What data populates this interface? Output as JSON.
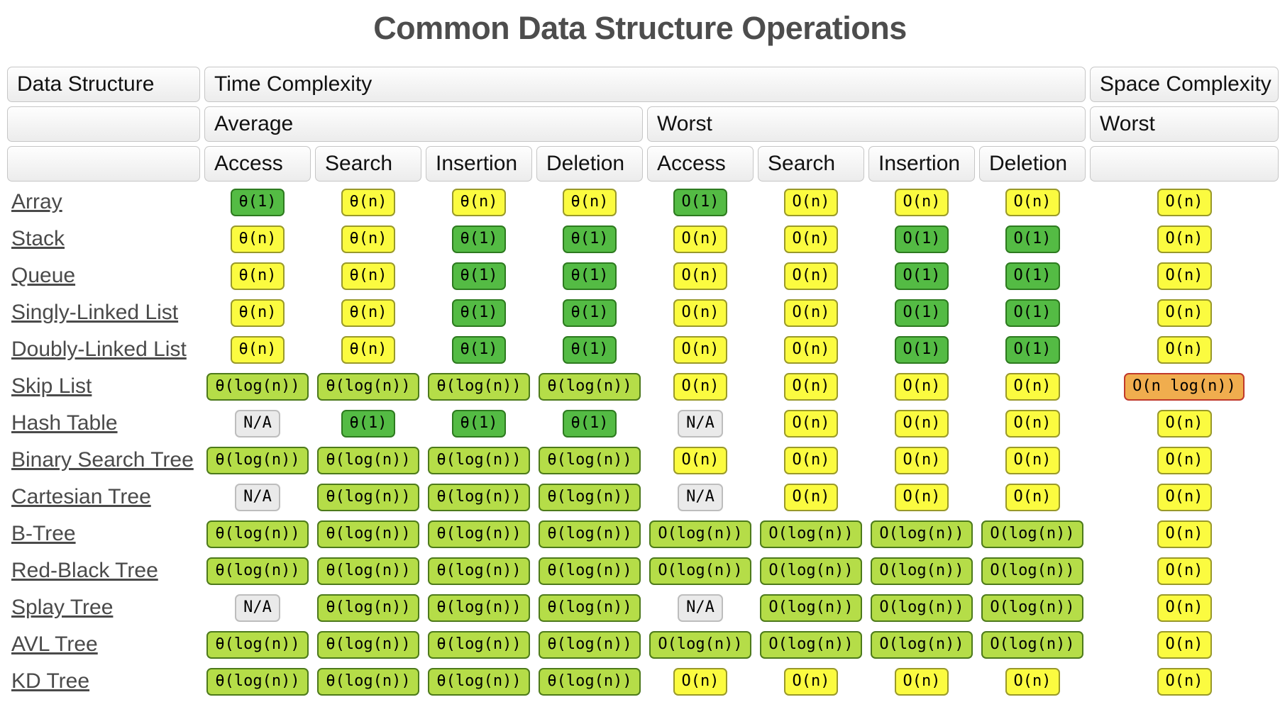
{
  "title": "Common Data Structure Operations",
  "colors": {
    "excellent_green": "#54bb44",
    "good_lightgreen": "#b5dd48",
    "fair_yellow": "#fbfb40",
    "bad_orange": "#f0ad4e",
    "orange_border_red": "#c0392b",
    "na_gray": "#eaeaea"
  },
  "table": {
    "header": {
      "data_structure": "Data Structure",
      "time_complexity": "Time Complexity",
      "space_complexity": "Space Complexity",
      "average": "Average",
      "time_worst": "Worst",
      "space_worst": "Worst",
      "ops": [
        "Access",
        "Search",
        "Insertion",
        "Deletion",
        "Access",
        "Search",
        "Insertion",
        "Deletion"
      ]
    },
    "rows": [
      {
        "name": "Array",
        "cells": [
          {
            "text": "θ(1)",
            "color": "green"
          },
          {
            "text": "θ(n)",
            "color": "yellow"
          },
          {
            "text": "θ(n)",
            "color": "yellow"
          },
          {
            "text": "θ(n)",
            "color": "yellow"
          },
          {
            "text": "O(1)",
            "color": "green"
          },
          {
            "text": "O(n)",
            "color": "yellow"
          },
          {
            "text": "O(n)",
            "color": "yellow"
          },
          {
            "text": "O(n)",
            "color": "yellow"
          },
          {
            "text": "O(n)",
            "color": "yellow"
          }
        ]
      },
      {
        "name": "Stack",
        "cells": [
          {
            "text": "θ(n)",
            "color": "yellow"
          },
          {
            "text": "θ(n)",
            "color": "yellow"
          },
          {
            "text": "θ(1)",
            "color": "green"
          },
          {
            "text": "θ(1)",
            "color": "green"
          },
          {
            "text": "O(n)",
            "color": "yellow"
          },
          {
            "text": "O(n)",
            "color": "yellow"
          },
          {
            "text": "O(1)",
            "color": "green"
          },
          {
            "text": "O(1)",
            "color": "green"
          },
          {
            "text": "O(n)",
            "color": "yellow"
          }
        ]
      },
      {
        "name": "Queue",
        "cells": [
          {
            "text": "θ(n)",
            "color": "yellow"
          },
          {
            "text": "θ(n)",
            "color": "yellow"
          },
          {
            "text": "θ(1)",
            "color": "green"
          },
          {
            "text": "θ(1)",
            "color": "green"
          },
          {
            "text": "O(n)",
            "color": "yellow"
          },
          {
            "text": "O(n)",
            "color": "yellow"
          },
          {
            "text": "O(1)",
            "color": "green"
          },
          {
            "text": "O(1)",
            "color": "green"
          },
          {
            "text": "O(n)",
            "color": "yellow"
          }
        ]
      },
      {
        "name": "Singly-Linked List",
        "cells": [
          {
            "text": "θ(n)",
            "color": "yellow"
          },
          {
            "text": "θ(n)",
            "color": "yellow"
          },
          {
            "text": "θ(1)",
            "color": "green"
          },
          {
            "text": "θ(1)",
            "color": "green"
          },
          {
            "text": "O(n)",
            "color": "yellow"
          },
          {
            "text": "O(n)",
            "color": "yellow"
          },
          {
            "text": "O(1)",
            "color": "green"
          },
          {
            "text": "O(1)",
            "color": "green"
          },
          {
            "text": "O(n)",
            "color": "yellow"
          }
        ]
      },
      {
        "name": "Doubly-Linked List",
        "cells": [
          {
            "text": "θ(n)",
            "color": "yellow"
          },
          {
            "text": "θ(n)",
            "color": "yellow"
          },
          {
            "text": "θ(1)",
            "color": "green"
          },
          {
            "text": "θ(1)",
            "color": "green"
          },
          {
            "text": "O(n)",
            "color": "yellow"
          },
          {
            "text": "O(n)",
            "color": "yellow"
          },
          {
            "text": "O(1)",
            "color": "green"
          },
          {
            "text": "O(1)",
            "color": "green"
          },
          {
            "text": "O(n)",
            "color": "yellow"
          }
        ]
      },
      {
        "name": "Skip List",
        "cells": [
          {
            "text": "θ(log(n))",
            "color": "lightgreen"
          },
          {
            "text": "θ(log(n))",
            "color": "lightgreen"
          },
          {
            "text": "θ(log(n))",
            "color": "lightgreen"
          },
          {
            "text": "θ(log(n))",
            "color": "lightgreen"
          },
          {
            "text": "O(n)",
            "color": "yellow"
          },
          {
            "text": "O(n)",
            "color": "yellow"
          },
          {
            "text": "O(n)",
            "color": "yellow"
          },
          {
            "text": "O(n)",
            "color": "yellow"
          },
          {
            "text": "O(n log(n))",
            "color": "orange"
          }
        ]
      },
      {
        "name": "Hash Table",
        "cells": [
          {
            "text": "N/A",
            "color": "na"
          },
          {
            "text": "θ(1)",
            "color": "green"
          },
          {
            "text": "θ(1)",
            "color": "green"
          },
          {
            "text": "θ(1)",
            "color": "green"
          },
          {
            "text": "N/A",
            "color": "na"
          },
          {
            "text": "O(n)",
            "color": "yellow"
          },
          {
            "text": "O(n)",
            "color": "yellow"
          },
          {
            "text": "O(n)",
            "color": "yellow"
          },
          {
            "text": "O(n)",
            "color": "yellow"
          }
        ]
      },
      {
        "name": "Binary Search Tree",
        "cells": [
          {
            "text": "θ(log(n))",
            "color": "lightgreen"
          },
          {
            "text": "θ(log(n))",
            "color": "lightgreen"
          },
          {
            "text": "θ(log(n))",
            "color": "lightgreen"
          },
          {
            "text": "θ(log(n))",
            "color": "lightgreen"
          },
          {
            "text": "O(n)",
            "color": "yellow"
          },
          {
            "text": "O(n)",
            "color": "yellow"
          },
          {
            "text": "O(n)",
            "color": "yellow"
          },
          {
            "text": "O(n)",
            "color": "yellow"
          },
          {
            "text": "O(n)",
            "color": "yellow"
          }
        ]
      },
      {
        "name": "Cartesian Tree",
        "cells": [
          {
            "text": "N/A",
            "color": "na"
          },
          {
            "text": "θ(log(n))",
            "color": "lightgreen"
          },
          {
            "text": "θ(log(n))",
            "color": "lightgreen"
          },
          {
            "text": "θ(log(n))",
            "color": "lightgreen"
          },
          {
            "text": "N/A",
            "color": "na"
          },
          {
            "text": "O(n)",
            "color": "yellow"
          },
          {
            "text": "O(n)",
            "color": "yellow"
          },
          {
            "text": "O(n)",
            "color": "yellow"
          },
          {
            "text": "O(n)",
            "color": "yellow"
          }
        ]
      },
      {
        "name": "B-Tree",
        "cells": [
          {
            "text": "θ(log(n))",
            "color": "lightgreen"
          },
          {
            "text": "θ(log(n))",
            "color": "lightgreen"
          },
          {
            "text": "θ(log(n))",
            "color": "lightgreen"
          },
          {
            "text": "θ(log(n))",
            "color": "lightgreen"
          },
          {
            "text": "O(log(n))",
            "color": "lightgreen"
          },
          {
            "text": "O(log(n))",
            "color": "lightgreen"
          },
          {
            "text": "O(log(n))",
            "color": "lightgreen"
          },
          {
            "text": "O(log(n))",
            "color": "lightgreen"
          },
          {
            "text": "O(n)",
            "color": "yellow"
          }
        ]
      },
      {
        "name": "Red-Black Tree",
        "cells": [
          {
            "text": "θ(log(n))",
            "color": "lightgreen"
          },
          {
            "text": "θ(log(n))",
            "color": "lightgreen"
          },
          {
            "text": "θ(log(n))",
            "color": "lightgreen"
          },
          {
            "text": "θ(log(n))",
            "color": "lightgreen"
          },
          {
            "text": "O(log(n))",
            "color": "lightgreen"
          },
          {
            "text": "O(log(n))",
            "color": "lightgreen"
          },
          {
            "text": "O(log(n))",
            "color": "lightgreen"
          },
          {
            "text": "O(log(n))",
            "color": "lightgreen"
          },
          {
            "text": "O(n)",
            "color": "yellow"
          }
        ]
      },
      {
        "name": "Splay Tree",
        "cells": [
          {
            "text": "N/A",
            "color": "na"
          },
          {
            "text": "θ(log(n))",
            "color": "lightgreen"
          },
          {
            "text": "θ(log(n))",
            "color": "lightgreen"
          },
          {
            "text": "θ(log(n))",
            "color": "lightgreen"
          },
          {
            "text": "N/A",
            "color": "na"
          },
          {
            "text": "O(log(n))",
            "color": "lightgreen"
          },
          {
            "text": "O(log(n))",
            "color": "lightgreen"
          },
          {
            "text": "O(log(n))",
            "color": "lightgreen"
          },
          {
            "text": "O(n)",
            "color": "yellow"
          }
        ]
      },
      {
        "name": "AVL Tree",
        "cells": [
          {
            "text": "θ(log(n))",
            "color": "lightgreen"
          },
          {
            "text": "θ(log(n))",
            "color": "lightgreen"
          },
          {
            "text": "θ(log(n))",
            "color": "lightgreen"
          },
          {
            "text": "θ(log(n))",
            "color": "lightgreen"
          },
          {
            "text": "O(log(n))",
            "color": "lightgreen"
          },
          {
            "text": "O(log(n))",
            "color": "lightgreen"
          },
          {
            "text": "O(log(n))",
            "color": "lightgreen"
          },
          {
            "text": "O(log(n))",
            "color": "lightgreen"
          },
          {
            "text": "O(n)",
            "color": "yellow"
          }
        ]
      },
      {
        "name": "KD Tree",
        "cells": [
          {
            "text": "θ(log(n))",
            "color": "lightgreen"
          },
          {
            "text": "θ(log(n))",
            "color": "lightgreen"
          },
          {
            "text": "θ(log(n))",
            "color": "lightgreen"
          },
          {
            "text": "θ(log(n))",
            "color": "lightgreen"
          },
          {
            "text": "O(n)",
            "color": "yellow"
          },
          {
            "text": "O(n)",
            "color": "yellow"
          },
          {
            "text": "O(n)",
            "color": "yellow"
          },
          {
            "text": "O(n)",
            "color": "yellow"
          },
          {
            "text": "O(n)",
            "color": "yellow"
          }
        ]
      }
    ]
  }
}
